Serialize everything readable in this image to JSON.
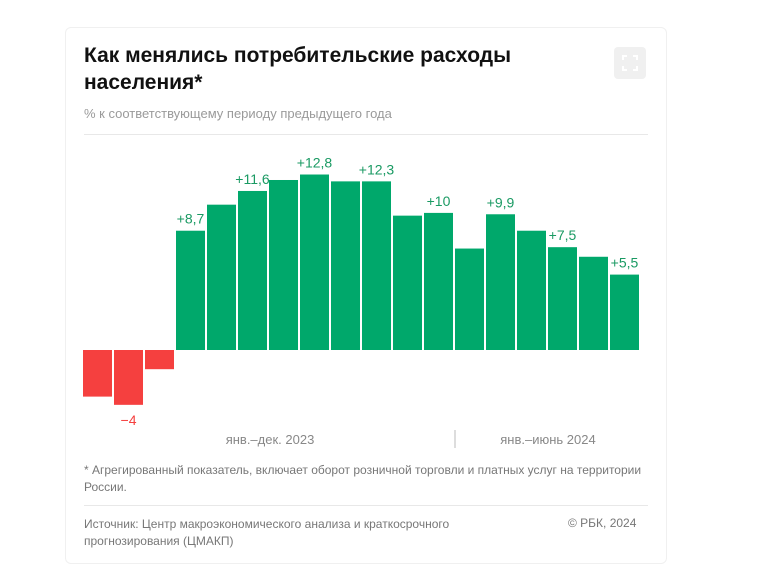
{
  "title": "Как менялись потребительские расходы населения*",
  "subtitle": "% к соответствующему периоду предыдущего года",
  "icons": {
    "expand": "expand-icon"
  },
  "footnote": "* Агрегированный показатель, включает оборот розничной торговли и платных услуг на территории России.",
  "source": "Источник: Центр макроэкономического анализа и краткосрочного прогнозирования (ЦМАКП)",
  "copyright": "© РБК, 2024",
  "chart_data": {
    "type": "bar",
    "title": "Как менялись потребительские расходы населения*",
    "ylabel": "% к соответствующему периоду предыдущего года",
    "period_labels": [
      "янв.–дек. 2023",
      "янв.–июнь 2024"
    ],
    "values": [
      -3.4,
      -4,
      -1.4,
      8.7,
      10.6,
      11.6,
      12.4,
      12.8,
      12.3,
      12.3,
      9.8,
      10,
      7.4,
      9.9,
      8.7,
      7.5,
      6.8,
      5.5
    ],
    "data_labels": {
      "1": "−4",
      "3": "+8,7",
      "5": "+11,6",
      "7": "+12,8",
      "9": "+12,3",
      "11": "+10",
      "13": "+9,9",
      "15": "+7,5",
      "17": "+5,5"
    },
    "colors": {
      "positive": "#00a86b",
      "negative": "#f5403f",
      "positive_label": "#1a9a63",
      "negative_label": "#f5403f"
    },
    "grid": false
  }
}
